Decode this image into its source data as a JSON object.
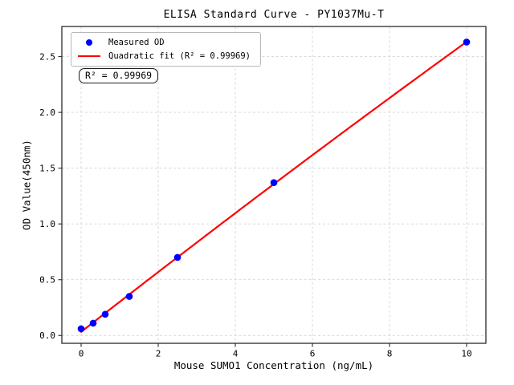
{
  "figure": {
    "colors": {
      "background": "#ffffff",
      "scatter_points": "#0000ff",
      "fit_line": "#ff0000",
      "grid": "#d4d4d4",
      "spine": "#2b2b2b",
      "text": "#000000",
      "legend_border": "#b8b8b8"
    }
  },
  "chart_data": {
    "type": "scatter",
    "title": "ELISA Standard Curve - PY1037Mu-T",
    "xlabel": "Mouse SUMO1 Concentration (ng/mL)",
    "ylabel": "OD Value(450nm)",
    "xlim": [
      -0.5,
      10.5
    ],
    "ylim": [
      -0.07,
      2.77
    ],
    "xticks": [
      0,
      2,
      4,
      6,
      8,
      10
    ],
    "yticks": [
      0.0,
      0.5,
      1.0,
      1.5,
      2.0,
      2.5
    ],
    "grid": true,
    "grid_style": "dashed",
    "legend_position": "upper left",
    "series": [
      {
        "name": "Measured OD",
        "type": "scatter",
        "marker": "dot",
        "color": "#0000ff",
        "x": [
          0,
          0.3125,
          0.625,
          1.25,
          2.5,
          5,
          10
        ],
        "y": [
          0.06,
          0.11,
          0.19,
          0.35,
          0.7,
          1.37,
          2.63
        ]
      },
      {
        "name": "Quadratic fit (R² = 0.99969)",
        "type": "line",
        "marker": "line",
        "color": "#ff0000",
        "fit": "quadratic",
        "fit_of": "Measured OD",
        "r_squared": 0.99969,
        "x_range": [
          0,
          10
        ]
      }
    ],
    "annotation": {
      "text": "R² = 0.99969",
      "position": "below legend, upper left"
    }
  }
}
